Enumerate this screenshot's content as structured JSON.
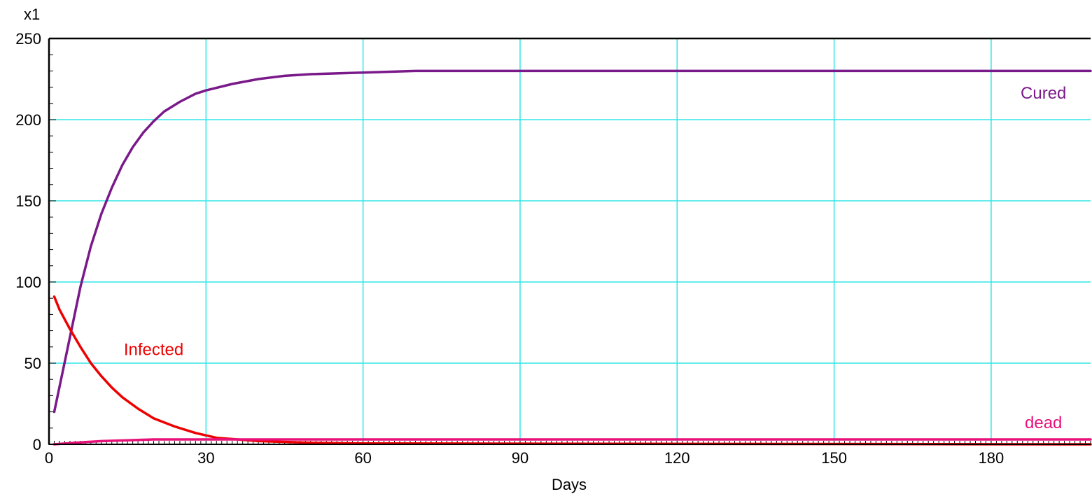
{
  "chart_data": {
    "type": "line",
    "multiplier_label": "x1",
    "xlabel": "Days",
    "ylabel": "",
    "xlim": [
      0,
      199
    ],
    "ylim": [
      0,
      250
    ],
    "grid": true,
    "x_ticks": [
      0,
      30,
      60,
      90,
      120,
      150,
      180
    ],
    "y_ticks": [
      0,
      50,
      100,
      150,
      200,
      250
    ],
    "grid_color": "#33e5e5",
    "series": [
      {
        "name": "Cured",
        "color": "#7a1a8a",
        "x": [
          1,
          4,
          6,
          8,
          10,
          12,
          14,
          16,
          18,
          20,
          22,
          25,
          28,
          30,
          35,
          40,
          45,
          50,
          60,
          70,
          80,
          100,
          199
        ],
        "y": [
          20,
          66,
          97,
          122,
          142,
          158,
          172,
          183,
          192,
          199,
          205,
          211,
          216,
          218,
          222,
          225,
          227,
          228,
          229,
          230,
          230,
          230,
          230
        ]
      },
      {
        "name": "Infected",
        "color": "#ee0000",
        "x": [
          1,
          2,
          4,
          6,
          8,
          10,
          12,
          14,
          17,
          20,
          24,
          28,
          32,
          36,
          40,
          50,
          60,
          199
        ],
        "y": [
          91,
          83,
          71,
          60,
          50,
          42,
          35,
          29,
          22,
          16,
          11,
          7,
          4,
          3,
          2,
          1,
          0.5,
          0
        ]
      },
      {
        "name": "dead",
        "color": "#e8117a",
        "x": [
          1,
          5,
          10,
          15,
          20,
          25,
          30,
          40,
          60,
          199
        ],
        "y": [
          0,
          1,
          2,
          2.5,
          3,
          3,
          3,
          3,
          3,
          3
        ]
      },
      {
        "name": "",
        "color": "#000000",
        "x": [
          0,
          199
        ],
        "y": [
          0,
          0
        ]
      }
    ],
    "series_labels": [
      {
        "text": "Cured",
        "color": "#7a1a8a",
        "at": [
          190,
          213
        ]
      },
      {
        "text": "Infected",
        "color": "#ee0000",
        "at": [
          20,
          55
        ]
      },
      {
        "text": "dead",
        "color": "#e8117a",
        "at": [
          190,
          10
        ]
      }
    ]
  }
}
